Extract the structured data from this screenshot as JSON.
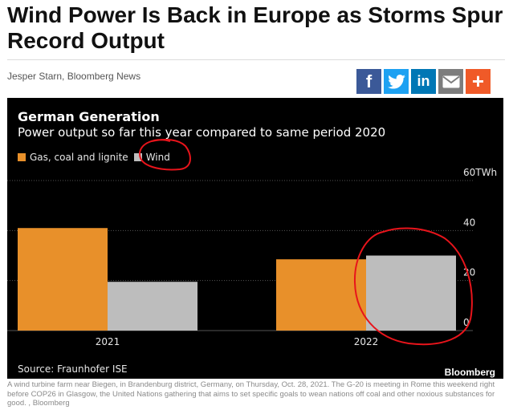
{
  "article": {
    "headline": "Wind Power Is Back in Europe as Storms Spur Record Output",
    "byline": "Jesper Starn, Bloomberg News",
    "share_buttons": [
      {
        "name": "facebook",
        "icon": "facebook-icon",
        "glyph": "f"
      },
      {
        "name": "twitter",
        "icon": "twitter-icon"
      },
      {
        "name": "linkedin",
        "icon": "linkedin-icon",
        "glyph": "in"
      },
      {
        "name": "email",
        "icon": "email-icon"
      },
      {
        "name": "more",
        "icon": "plus-icon",
        "glyph": "+"
      }
    ],
    "caption": "A wind turbine farm near Biegen, in Brandenburg district, Germany, on Thursday, Oct. 28, 2021. The G-20 is meeting in Rome this weekend right before COP26 in Glasgow, the United Nations gathering that aims to set specific goals to wean nations off coal and other noxious substances for good. , Bloomberg"
  },
  "chart_data": {
    "type": "bar",
    "title": "German Generation",
    "subtitle": "Power output so far this year compared to same period 2020",
    "categories": [
      "2021",
      "2022"
    ],
    "series": [
      {
        "name": "Gas, coal and lignite",
        "values": [
          41,
          28.5
        ],
        "color": "#e8902a"
      },
      {
        "name": "Wind",
        "values": [
          19.5,
          30
        ],
        "color": "#bdbdbd"
      }
    ],
    "ylim": [
      0,
      60
    ],
    "yticks": [
      0,
      20,
      40,
      60
    ],
    "ytick_labels": [
      "0",
      "20",
      "40",
      "60TWh"
    ],
    "grid": true,
    "legend_position": "top-left",
    "source": "Source: Fraunhofer ISE",
    "brand": "Bloomberg",
    "annotations": "red hand-drawn circles around the Wind legend entry and the 2022 Wind bar",
    "annotation_color": "#e8141b"
  }
}
